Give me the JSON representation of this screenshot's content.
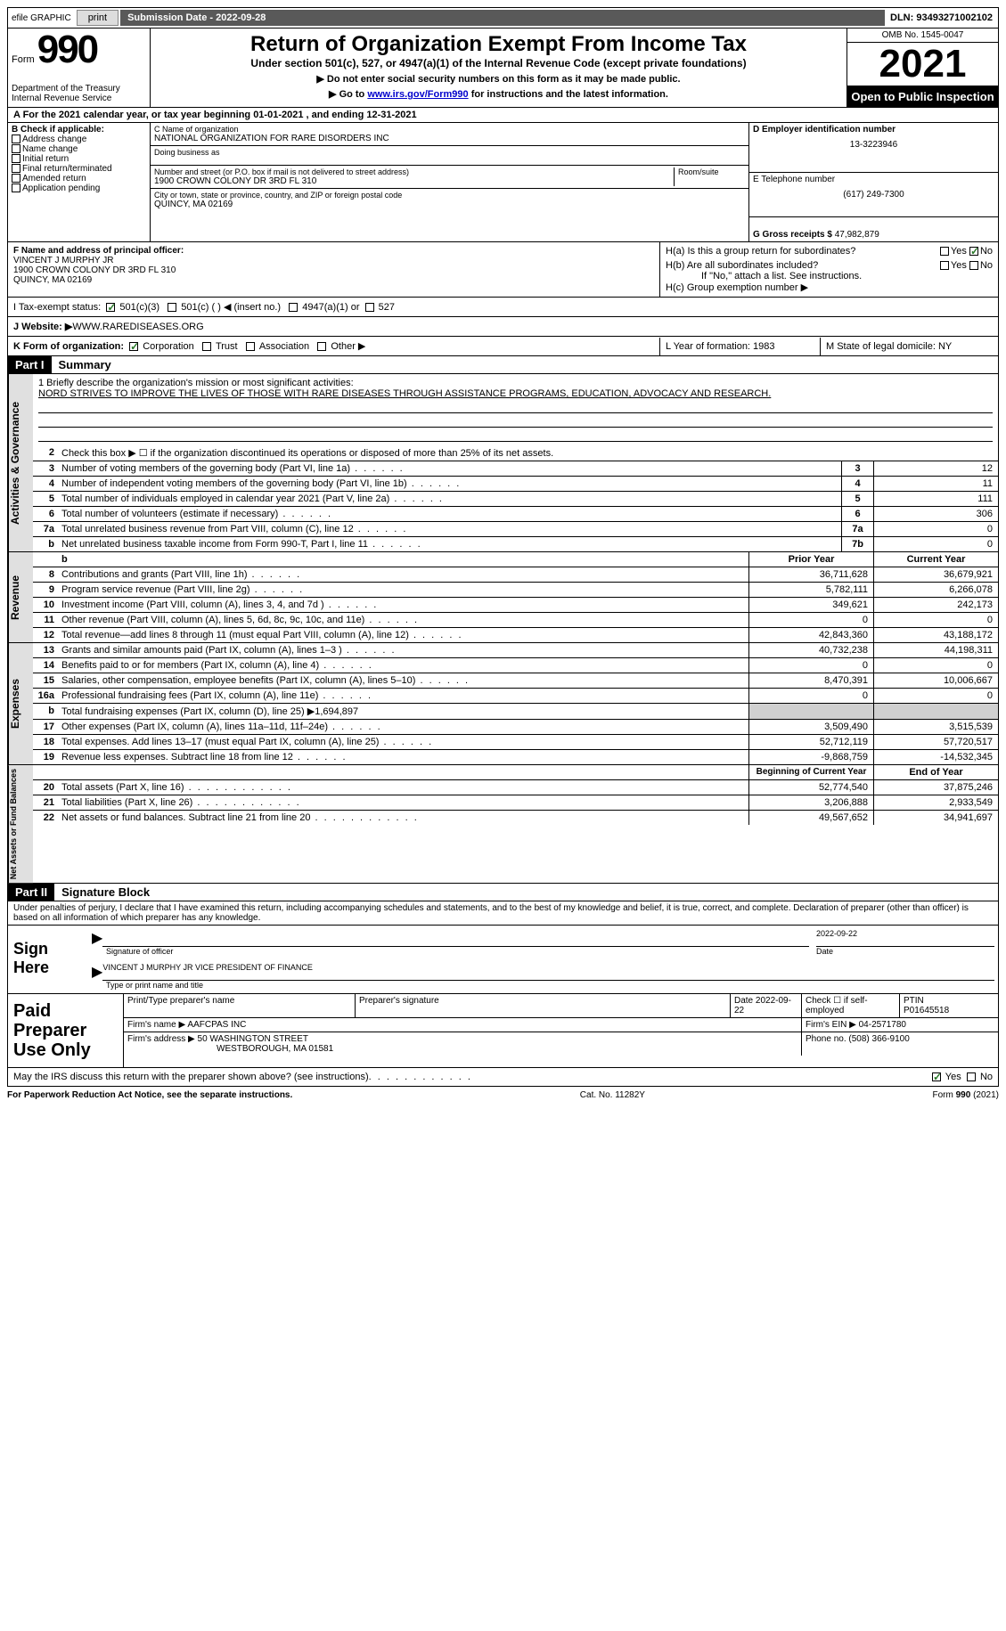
{
  "topbar": {
    "efile": "efile GRAPHIC",
    "print": "print",
    "submission": "Submission Date - 2022-09-28",
    "dln": "DLN: 93493271002102"
  },
  "header": {
    "form_word": "Form",
    "form_num": "990",
    "dept": "Department of the Treasury Internal Revenue Service",
    "title": "Return of Organization Exempt From Income Tax",
    "subtitle": "Under section 501(c), 527, or 4947(a)(1) of the Internal Revenue Code (except private foundations)",
    "sub2": "▶ Do not enter social security numbers on this form as it may be made public.",
    "sub3_a": "▶ Go to ",
    "sub3_link": "www.irs.gov/Form990",
    "sub3_b": " for instructions and the latest information.",
    "omb": "OMB No. 1545-0047",
    "year": "2021",
    "open": "Open to Public Inspection"
  },
  "row_a": "A For the 2021 calendar year, or tax year beginning 01-01-2021    , and ending 12-31-2021",
  "col_b": {
    "hdr": "B Check if applicable:",
    "items": [
      "Address change",
      "Name change",
      "Initial return",
      "Final return/terminated",
      "Amended return",
      "Application pending"
    ]
  },
  "col_c": {
    "name_lbl": "C Name of organization",
    "name": "NATIONAL ORGANIZATION FOR RARE DISORDERS INC",
    "dba_lbl": "Doing business as",
    "street_lbl": "Number and street (or P.O. box if mail is not delivered to street address)",
    "room_lbl": "Room/suite",
    "street": "1900 CROWN COLONY DR 3RD FL 310",
    "city_lbl": "City or town, state or province, country, and ZIP or foreign postal code",
    "city": "QUINCY, MA  02169"
  },
  "col_d": {
    "ein_lbl": "D Employer identification number",
    "ein": "13-3223946",
    "tel_lbl": "E Telephone number",
    "tel": "(617) 249-7300",
    "gross_lbl": "G Gross receipts $",
    "gross": "47,982,879"
  },
  "fg": {
    "f_lbl": "F  Name and address of principal officer:",
    "f_name": "VINCENT J MURPHY JR",
    "f_addr1": "1900 CROWN COLONY DR 3RD FL 310",
    "f_addr2": "QUINCY, MA  02169",
    "ha": "H(a)  Is this a group return for subordinates?",
    "hb": "H(b)  Are all subordinates included?",
    "hb_note": "If \"No,\" attach a list. See instructions.",
    "hc": "H(c)  Group exemption number ▶",
    "yes": "Yes",
    "no": "No"
  },
  "tax_status": {
    "lbl": "I   Tax-exempt status:",
    "a": "501(c)(3)",
    "b": "501(c) (   ) ◀ (insert no.)",
    "c": "4947(a)(1) or",
    "d": "527"
  },
  "website": {
    "lbl": "J   Website: ▶",
    "val": " WWW.RAREDISEASES.ORG"
  },
  "korg": {
    "lbl": "K Form of organization:",
    "a": "Corporation",
    "b": "Trust",
    "c": "Association",
    "d": "Other ▶",
    "l": "L Year of formation: 1983",
    "m": "M State of legal domicile: NY"
  },
  "part1": {
    "hdr": "Part I",
    "title": "Summary"
  },
  "mission": {
    "lbl": "1   Briefly describe the organization's mission or most significant activities:",
    "text": "NORD STRIVES TO IMPROVE THE LIVES OF THOSE WITH RARE DISEASES THROUGH ASSISTANCE PROGRAMS, EDUCATION, ADVOCACY AND RESEARCH."
  },
  "gov_lines": [
    {
      "n": "2",
      "d": "Check this box ▶ ☐  if the organization discontinued its operations or disposed of more than 25% of its net assets.",
      "box": "",
      "v": ""
    },
    {
      "n": "3",
      "d": "Number of voting members of the governing body (Part VI, line 1a)",
      "box": "3",
      "v": "12"
    },
    {
      "n": "4",
      "d": "Number of independent voting members of the governing body (Part VI, line 1b)",
      "box": "4",
      "v": "11"
    },
    {
      "n": "5",
      "d": "Total number of individuals employed in calendar year 2021 (Part V, line 2a)",
      "box": "5",
      "v": "111"
    },
    {
      "n": "6",
      "d": "Total number of volunteers (estimate if necessary)",
      "box": "6",
      "v": "306"
    },
    {
      "n": "7a",
      "d": "Total unrelated business revenue from Part VIII, column (C), line 12",
      "box": "7a",
      "v": "0"
    },
    {
      "n": "b",
      "d": "Net unrelated business taxable income from Form 990-T, Part I, line 11",
      "box": "7b",
      "v": "0"
    }
  ],
  "col_hdrs": {
    "py": "Prior Year",
    "cy": "Current Year"
  },
  "rev_lines": [
    {
      "n": "8",
      "d": "Contributions and grants (Part VIII, line 1h)",
      "py": "36,711,628",
      "cy": "36,679,921"
    },
    {
      "n": "9",
      "d": "Program service revenue (Part VIII, line 2g)",
      "py": "5,782,111",
      "cy": "6,266,078"
    },
    {
      "n": "10",
      "d": "Investment income (Part VIII, column (A), lines 3, 4, and 7d )",
      "py": "349,621",
      "cy": "242,173"
    },
    {
      "n": "11",
      "d": "Other revenue (Part VIII, column (A), lines 5, 6d, 8c, 9c, 10c, and 11e)",
      "py": "0",
      "cy": "0"
    },
    {
      "n": "12",
      "d": "Total revenue—add lines 8 through 11 (must equal Part VIII, column (A), line 12)",
      "py": "42,843,360",
      "cy": "43,188,172"
    }
  ],
  "exp_lines": [
    {
      "n": "13",
      "d": "Grants and similar amounts paid (Part IX, column (A), lines 1–3 )",
      "py": "40,732,238",
      "cy": "44,198,311"
    },
    {
      "n": "14",
      "d": "Benefits paid to or for members (Part IX, column (A), line 4)",
      "py": "0",
      "cy": "0"
    },
    {
      "n": "15",
      "d": "Salaries, other compensation, employee benefits (Part IX, column (A), lines 5–10)",
      "py": "8,470,391",
      "cy": "10,006,667"
    },
    {
      "n": "16a",
      "d": "Professional fundraising fees (Part IX, column (A), line 11e)",
      "py": "0",
      "cy": "0"
    },
    {
      "n": "b",
      "d": "Total fundraising expenses (Part IX, column (D), line 25) ▶1,694,897",
      "py": "",
      "cy": "",
      "shade": true
    },
    {
      "n": "17",
      "d": "Other expenses (Part IX, column (A), lines 11a–11d, 11f–24e)",
      "py": "3,509,490",
      "cy": "3,515,539"
    },
    {
      "n": "18",
      "d": "Total expenses. Add lines 13–17 (must equal Part IX, column (A), line 25)",
      "py": "52,712,119",
      "cy": "57,720,517"
    },
    {
      "n": "19",
      "d": "Revenue less expenses. Subtract line 18 from line 12",
      "py": "-9,868,759",
      "cy": "-14,532,345"
    }
  ],
  "net_hdrs": {
    "by": "Beginning of Current Year",
    "ey": "End of Year"
  },
  "net_lines": [
    {
      "n": "20",
      "d": "Total assets (Part X, line 16)",
      "py": "52,774,540",
      "cy": "37,875,246"
    },
    {
      "n": "21",
      "d": "Total liabilities (Part X, line 26)",
      "py": "3,206,888",
      "cy": "2,933,549"
    },
    {
      "n": "22",
      "d": "Net assets or fund balances. Subtract line 21 from line 20",
      "py": "49,567,652",
      "cy": "34,941,697"
    }
  ],
  "part2": {
    "hdr": "Part II",
    "title": "Signature Block"
  },
  "penalty": "Under penalties of perjury, I declare that I have examined this return, including accompanying schedules and statements, and to the best of my knowledge and belief, it is true, correct, and complete. Declaration of preparer (other than officer) is based on all information of which preparer has any knowledge.",
  "sign": {
    "lbl": "Sign Here",
    "sig_of": "Signature of officer",
    "date": "2022-09-22",
    "date_lbl": "Date",
    "typed": "VINCENT J MURPHY JR  VICE PRESIDENT OF FINANCE",
    "typed_lbl": "Type or print name and title"
  },
  "prep": {
    "lbl": "Paid Preparer Use Only",
    "c1": "Print/Type preparer's name",
    "c2": "Preparer's signature",
    "c3": "Date 2022-09-22",
    "c4_lbl": "Check ☐ if self-employed",
    "c5_lbl": "PTIN",
    "c5": "P01645518",
    "firm_lbl": "Firm's name    ▶",
    "firm": "AAFCPAS INC",
    "ein_lbl": "Firm's EIN ▶",
    "ein": "04-2571780",
    "addr_lbl": "Firm's address ▶",
    "addr1": "50 WASHINGTON STREET",
    "addr2": "WESTBOROUGH, MA  01581",
    "phone_lbl": "Phone no.",
    "phone": "(508) 366-9100"
  },
  "discuss": "May the IRS discuss this return with the preparer shown above? (see instructions)",
  "footer": {
    "left": "For Paperwork Reduction Act Notice, see the separate instructions.",
    "mid": "Cat. No. 11282Y",
    "right": "Form 990 (2021)"
  }
}
